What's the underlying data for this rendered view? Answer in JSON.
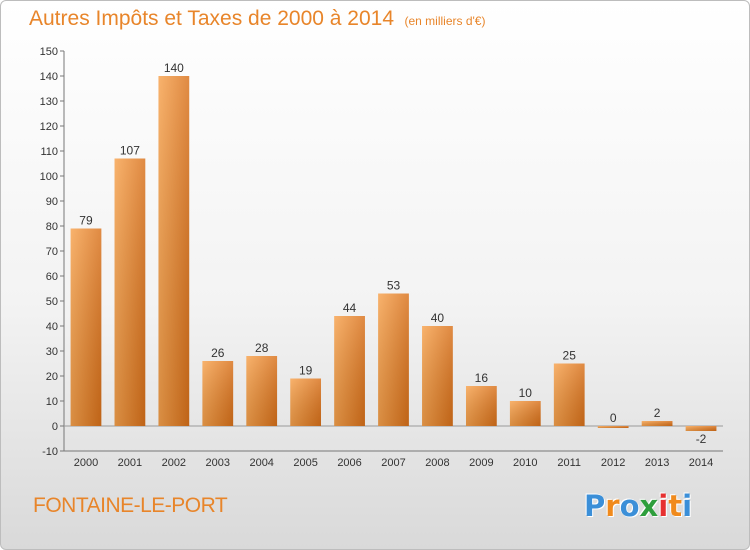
{
  "header": {
    "title": "Autres Impôts et Taxes de 2000 à 2014",
    "subtitle": "(en milliers d'€)"
  },
  "footer": {
    "place": "FONTAINE-LE-PORT",
    "brand": "Proxiti",
    "brand_letters": [
      {
        "char": "P",
        "color": "#3b8fd8"
      },
      {
        "char": "r",
        "color": "#f08a1c"
      },
      {
        "char": "o",
        "color": "#3b8fd8"
      },
      {
        "char": "x",
        "color": "#2e9e3c"
      },
      {
        "char": "i",
        "color": "#e63030"
      },
      {
        "char": "t",
        "color": "#f08a1c"
      },
      {
        "char": "i",
        "color": "#3b8fd8"
      }
    ]
  },
  "chart_data": {
    "type": "bar",
    "title": "Autres Impôts et Taxes de 2000 à 2014",
    "subtitle": "(en milliers d'€)",
    "categories": [
      "2000",
      "2001",
      "2002",
      "2003",
      "2004",
      "2005",
      "2006",
      "2007",
      "2008",
      "2009",
      "2010",
      "2011",
      "2012",
      "2013",
      "2014"
    ],
    "values": [
      79,
      107,
      140,
      26,
      28,
      19,
      44,
      53,
      40,
      16,
      10,
      25,
      0,
      2,
      -2
    ],
    "ylim": [
      -10,
      150
    ],
    "yticks": [
      -10,
      0,
      10,
      20,
      30,
      40,
      50,
      60,
      70,
      80,
      90,
      100,
      110,
      120,
      130,
      140,
      150
    ],
    "grid": false,
    "colors": {
      "bar_light": "#f7a04a",
      "bar_dark": "#d96f12",
      "text": "#333333",
      "axis": "#666666"
    }
  }
}
